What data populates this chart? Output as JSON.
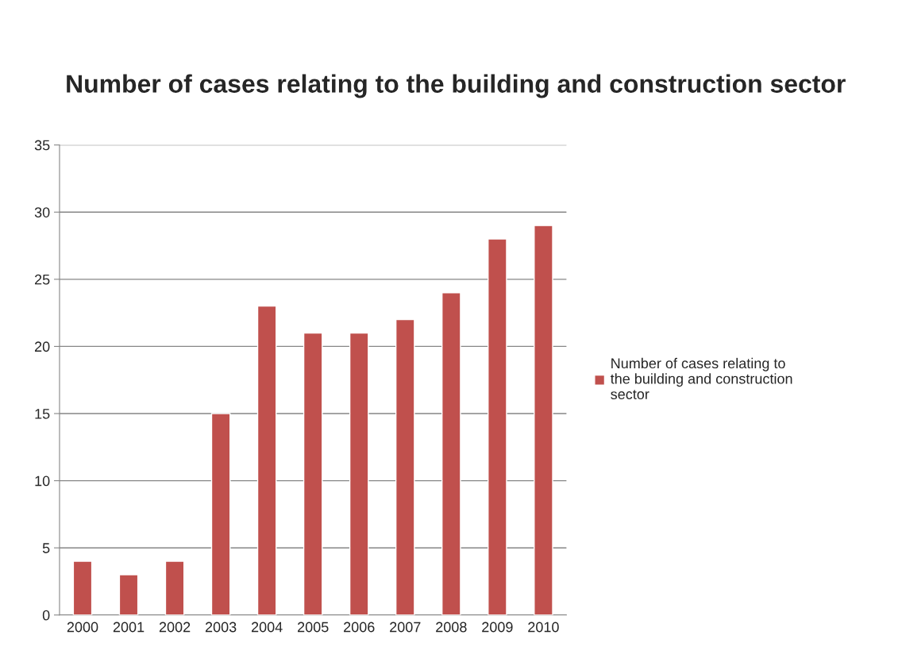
{
  "chart_data": {
    "type": "bar",
    "title": "Number of cases relating to the building and construction sector",
    "categories": [
      "2000",
      "2001",
      "2002",
      "2003",
      "2004",
      "2005",
      "2006",
      "2007",
      "2008",
      "2009",
      "2010"
    ],
    "series": [
      {
        "name": "Number of cases relating to the building and construction sector",
        "color": "#c0504d",
        "values": [
          4,
          3,
          4,
          15,
          23,
          21,
          21,
          22,
          24,
          28,
          29
        ]
      }
    ],
    "ylim": [
      0,
      35
    ],
    "yticks": [
      0,
      5,
      10,
      15,
      20,
      25,
      30,
      35
    ],
    "grid": "y",
    "legend": "right"
  }
}
